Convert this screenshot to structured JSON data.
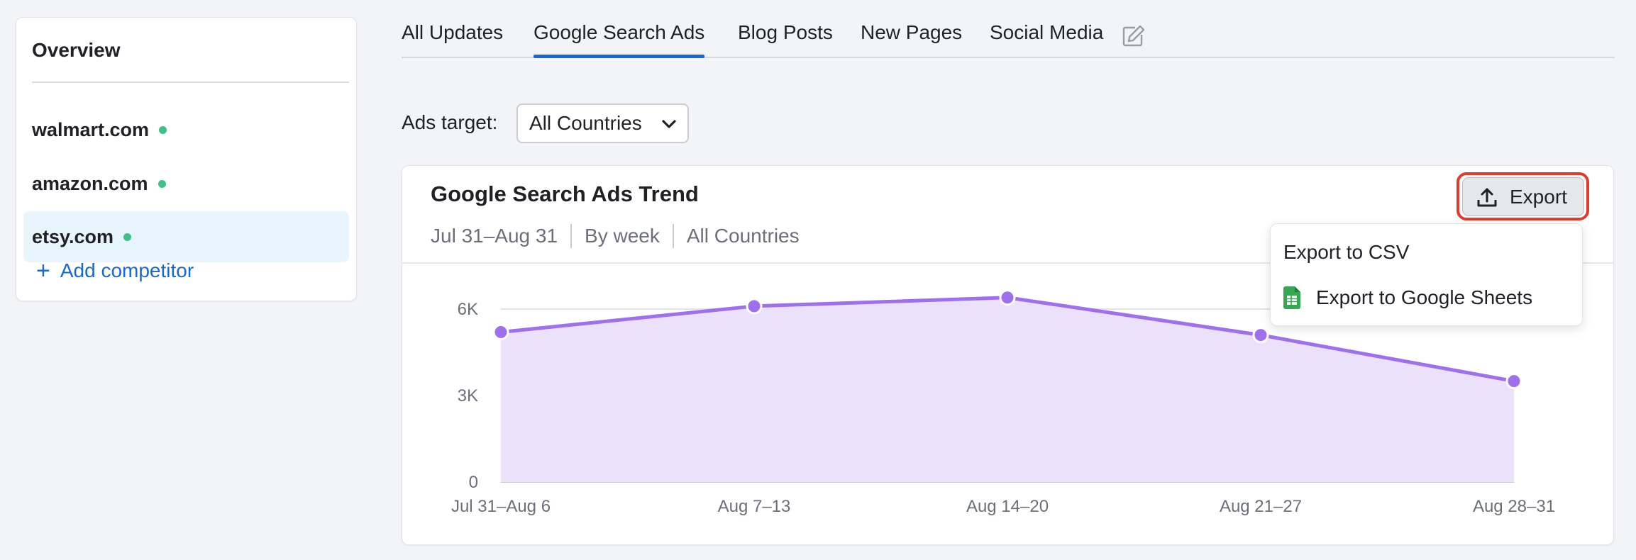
{
  "sidebar": {
    "title": "Overview",
    "competitors": [
      {
        "domain": "walmart.com",
        "status_color": "#3fbf8a",
        "active": false
      },
      {
        "domain": "amazon.com",
        "status_color": "#3fbf8a",
        "active": false
      },
      {
        "domain": "etsy.com",
        "status_color": "#3fbf8a",
        "active": true
      }
    ],
    "add_label": "Add competitor",
    "add_icon": "plus-icon"
  },
  "tabs": {
    "items": [
      "All Updates",
      "Google Search Ads",
      "Blog Posts",
      "New Pages",
      "Social Media"
    ],
    "active": "Google Search Ads",
    "edit_icon": "edit-icon"
  },
  "filters": {
    "ads_target_label": "Ads target:",
    "ads_target_value": "All Countries"
  },
  "card": {
    "title": "Google Search Ads Trend",
    "date_range": "Jul 31–Aug 31",
    "granularity": "By week",
    "region": "All Countries",
    "export_label": "Export",
    "export_menu": [
      {
        "label": "Export to CSV",
        "icon": ""
      },
      {
        "label": "Export to Google Sheets",
        "icon": "google-sheets-icon"
      }
    ]
  },
  "colors": {
    "accent": "#1a67d2",
    "series": "#9f70ee",
    "area_fill": "#ece1fb",
    "highlight": "#e23b2b",
    "status_dot": "#3fbf8a"
  },
  "chart_data": {
    "type": "area",
    "categories": [
      "Jul 31–Aug 6",
      "Aug 7–13",
      "Aug 14–20",
      "Aug 21–27",
      "Aug 28–31"
    ],
    "series": [
      {
        "values": [
          5200,
          6100,
          6400,
          5100,
          3500
        ]
      }
    ],
    "y_ticks": [
      {
        "value": 0,
        "label": "0"
      },
      {
        "value": 3000,
        "label": "3K"
      },
      {
        "value": 6000,
        "label": "6K"
      }
    ],
    "ylim": [
      0,
      6000
    ],
    "grid": true,
    "legend": "none"
  }
}
